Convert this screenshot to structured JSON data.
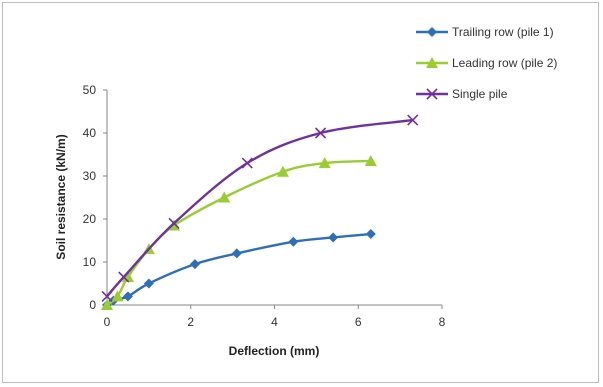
{
  "chart_data": {
    "type": "line",
    "title": "",
    "xlabel": "Deflection (mm)",
    "ylabel": "Soil resistance (kN/m)",
    "xlim": [
      0,
      8
    ],
    "ylim": [
      0,
      50
    ],
    "xticks": [
      "0",
      "2",
      "4",
      "6",
      "8"
    ],
    "yticks": [
      "0",
      "10",
      "20",
      "30",
      "40",
      "50"
    ],
    "grid": false,
    "legend_position": "top-right",
    "series": [
      {
        "name": "Trailing row (pile 1)",
        "color": "#2e6fb7",
        "marker": "diamond",
        "x": [
          0,
          0.15,
          0.5,
          1.0,
          2.1,
          3.1,
          4.45,
          5.4,
          6.3
        ],
        "y": [
          0,
          1.0,
          2.0,
          5.0,
          9.5,
          12.0,
          14.7,
          15.7,
          16.5
        ]
      },
      {
        "name": "Leading row (pile 2)",
        "color": "#9acd32",
        "marker": "triangle",
        "x": [
          0,
          0.25,
          0.5,
          1.0,
          1.6,
          2.8,
          4.2,
          5.2,
          6.3
        ],
        "y": [
          0,
          2.0,
          6.5,
          13.0,
          18.5,
          25.0,
          31.0,
          33.0,
          33.5
        ]
      },
      {
        "name": "Single pile",
        "color": "#7030a0",
        "marker": "x",
        "x": [
          0,
          0.4,
          1.6,
          3.35,
          5.1,
          7.3
        ],
        "y": [
          2.0,
          6.5,
          19.0,
          33.0,
          40.0,
          43.0
        ]
      }
    ]
  }
}
